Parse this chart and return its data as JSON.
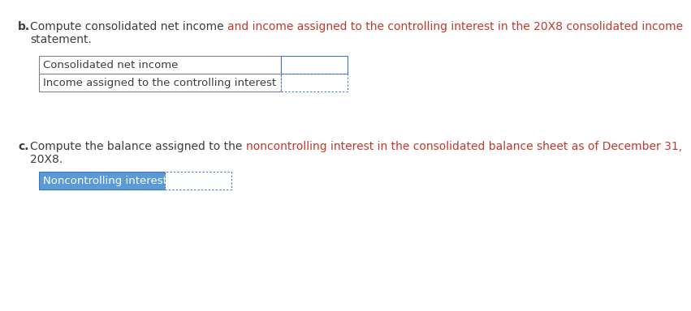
{
  "background_color": "#ffffff",
  "section_b_label": "b.",
  "section_c_label": "c.",
  "section_b_line1_parts": [
    [
      "Compute consolidated net income ",
      "#3d3d3d"
    ],
    [
      "and income assigned to the controlling interest in the 20X8 consolidated income",
      "#c0392b"
    ]
  ],
  "section_b_line2": "statement.",
  "section_b_line2_color": "#3d3d3d",
  "section_c_line1_parts": [
    [
      "Compute the balance assigned to the ",
      "#3d3d3d"
    ],
    [
      "noncontrolling interest in the consolidated balance sheet as of December 31,",
      "#c0392b"
    ]
  ],
  "section_c_line2": "20X8.",
  "section_c_line2_color": "#3d3d3d",
  "table_b_rows": [
    "Consolidated net income",
    "Income assigned to the controlling interest"
  ],
  "table_c_rows": [
    "Noncontrolling interest"
  ],
  "solid_border_color": "#4472c4",
  "dotted_border_color": "#4472c4",
  "header_bg_color": "#5b9bd5",
  "header_text_color": "#ffffff",
  "row_bg_color": "#ffffff",
  "row_text_color": "#3d3d3d",
  "font_size_text": 10.0,
  "font_size_table": 9.5,
  "label_color": "#3d3d3d",
  "bold_label_color": "#3d3d3d"
}
